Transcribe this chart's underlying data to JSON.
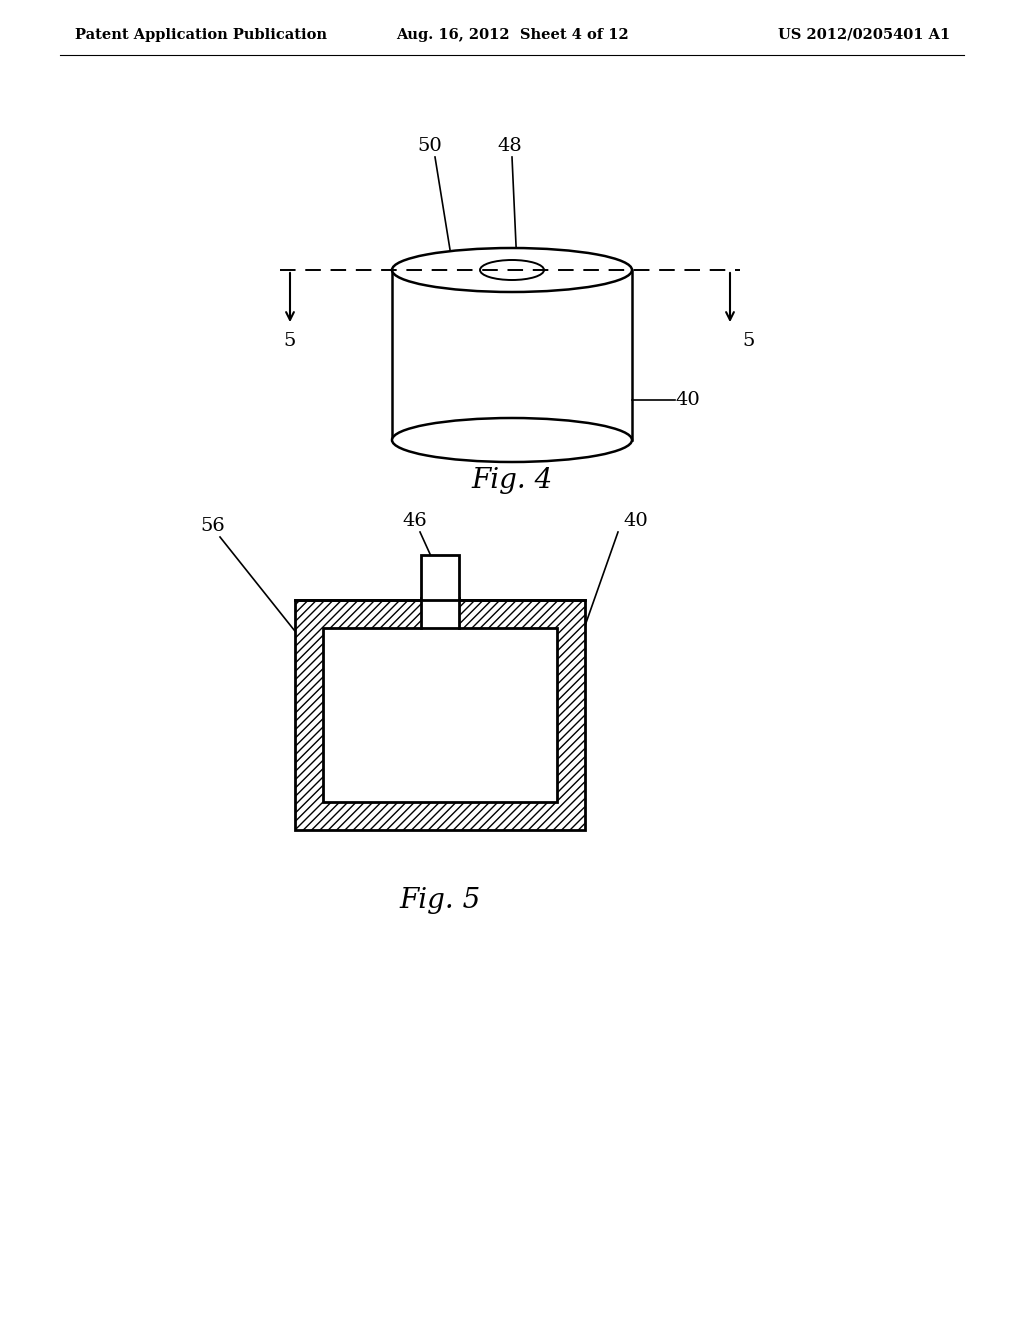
{
  "background_color": "#ffffff",
  "header_left": "Patent Application Publication",
  "header_mid": "Aug. 16, 2012  Sheet 4 of 12",
  "header_right": "US 2012/0205401 A1",
  "fig4_label": "Fig. 4",
  "fig5_label": "Fig. 5",
  "annotation_fontsize": 14,
  "fig_label_fontsize": 20,
  "header_fontsize": 10.5
}
